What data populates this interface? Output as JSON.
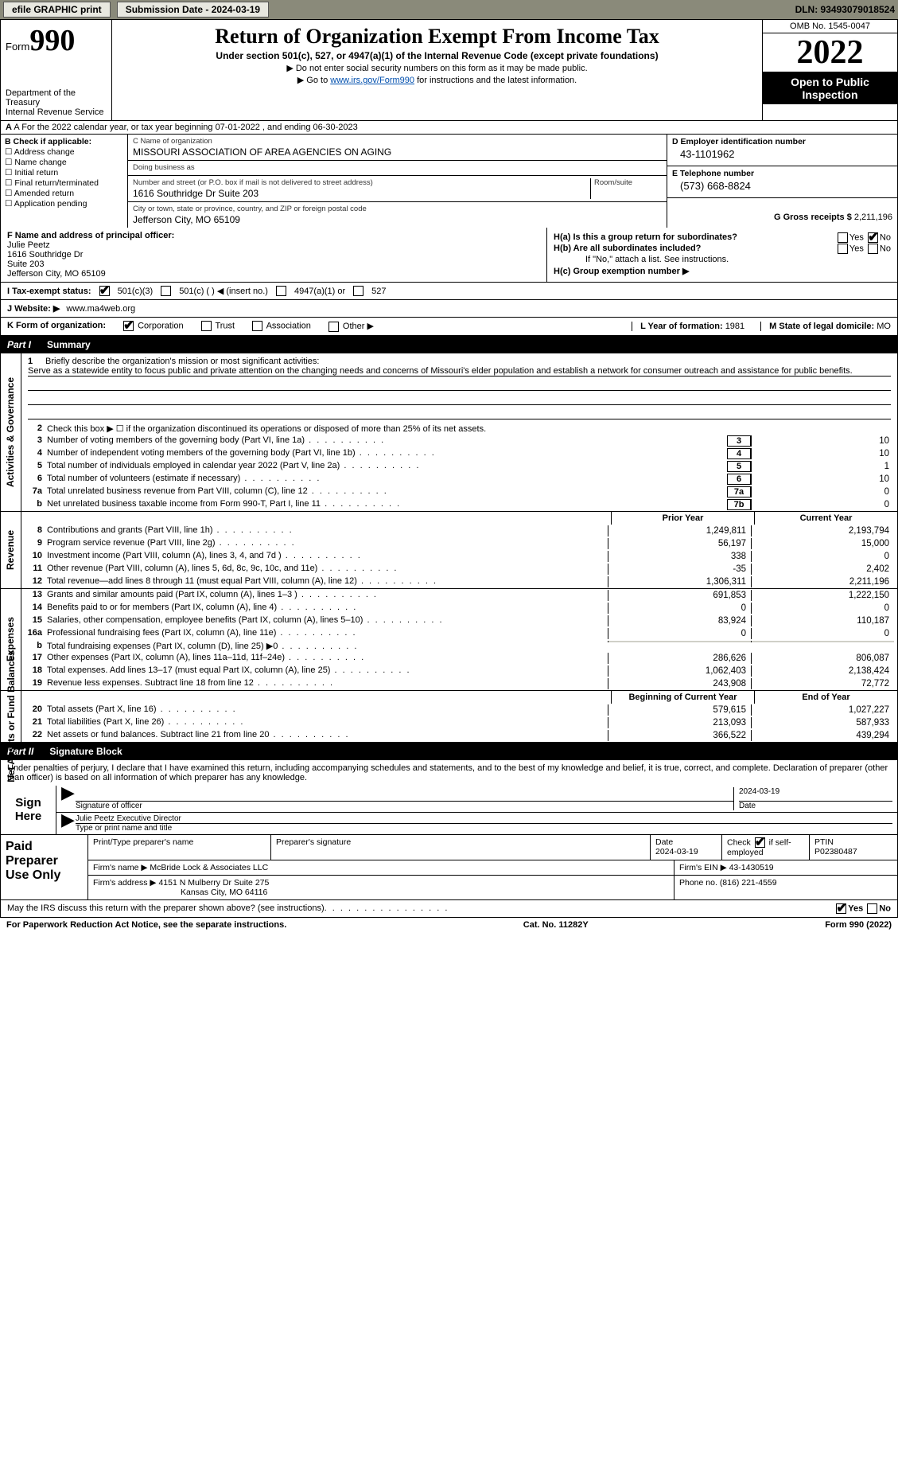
{
  "topbar": {
    "efile": "efile GRAPHIC print",
    "submission_label": "Submission Date - 2024-03-19",
    "dln": "DLN: 93493079018524"
  },
  "header": {
    "form_word": "Form",
    "form_num": "990",
    "dept1": "Department of the Treasury",
    "dept2": "Internal Revenue Service",
    "title": "Return of Organization Exempt From Income Tax",
    "subtitle": "Under section 501(c), 527, or 4947(a)(1) of the Internal Revenue Code (except private foundations)",
    "note1": "▶ Do not enter social security numbers on this form as it may be made public.",
    "note2_pre": "▶ Go to ",
    "note2_link": "www.irs.gov/Form990",
    "note2_post": " for instructions and the latest information.",
    "omb": "OMB No. 1545-0047",
    "year": "2022",
    "otp1": "Open to Public",
    "otp2": "Inspection"
  },
  "rowA": "A For the 2022 calendar year, or tax year beginning 07-01-2022    , and ending 06-30-2023",
  "B": {
    "title": "B Check if applicable:",
    "opts": [
      "☐ Address change",
      "☐ Name change",
      "☐ Initial return",
      "☐ Final return/terminated",
      "☐ Amended return",
      "☐ Application pending"
    ]
  },
  "C": {
    "name_lbl": "C Name of organization",
    "name": "MISSOURI ASSOCIATION OF AREA AGENCIES ON AGING",
    "dba_lbl": "Doing business as",
    "dba": "",
    "street_lbl": "Number and street (or P.O. box if mail is not delivered to street address)",
    "room_lbl": "Room/suite",
    "street": "1616 Southridge Dr Suite 203",
    "city_lbl": "City or town, state or province, country, and ZIP or foreign postal code",
    "city": "Jefferson City, MO  65109"
  },
  "D": {
    "ein_lbl": "D Employer identification number",
    "ein": "43-1101962",
    "tel_lbl": "E Telephone number",
    "tel": "(573) 668-8824",
    "gross_lbl": "G Gross receipts $",
    "gross": "2,211,196"
  },
  "F": {
    "lbl": "F  Name and address of principal officer:",
    "name": "Julie Peetz",
    "addr1": "1616 Southridge Dr",
    "addr2": "Suite 203",
    "addr3": "Jefferson City, MO  65109"
  },
  "H": {
    "a": "H(a)  Is this a group return for subordinates?",
    "b": "H(b)  Are all subordinates included?",
    "b2": "If \"No,\" attach a list. See instructions.",
    "c": "H(c)  Group exemption number ▶"
  },
  "I": {
    "lbl": "I    Tax-exempt status:",
    "o1": "501(c)(3)",
    "o2": "501(c) (  ) ◀ (insert no.)",
    "o3": "4947(a)(1) or",
    "o4": "527"
  },
  "J": {
    "lbl": "J   Website: ▶",
    "val": " www.ma4web.org"
  },
  "K": {
    "lbl": "K Form of organization:",
    "o1": "Corporation",
    "o2": "Trust",
    "o3": "Association",
    "o4": "Other ▶",
    "L_lbl": "L Year of formation:",
    "L_val": "1981",
    "M_lbl": "M State of legal domicile:",
    "M_val": "MO"
  },
  "part1": {
    "num": "Part I",
    "title": "Summary"
  },
  "mission": {
    "line1_num": "1",
    "line1": "Briefly describe the organization's mission or most significant activities:",
    "text": "Serve as a statewide entity to focus public and private attention on the changing needs and concerns of Missouri's elder population and establish a network for consumer outreach and assistance for public benefits."
  },
  "gov_lines": [
    {
      "n": "2",
      "t": "Check this box ▶ ☐  if the organization discontinued its operations or disposed of more than 25% of its net assets.",
      "box": "",
      "v": ""
    },
    {
      "n": "3",
      "t": "Number of voting members of the governing body (Part VI, line 1a)",
      "box": "3",
      "v": "10"
    },
    {
      "n": "4",
      "t": "Number of independent voting members of the governing body (Part VI, line 1b)",
      "box": "4",
      "v": "10"
    },
    {
      "n": "5",
      "t": "Total number of individuals employed in calendar year 2022 (Part V, line 2a)",
      "box": "5",
      "v": "1"
    },
    {
      "n": "6",
      "t": "Total number of volunteers (estimate if necessary)",
      "box": "6",
      "v": "10"
    },
    {
      "n": "7a",
      "t": "Total unrelated business revenue from Part VIII, column (C), line 12",
      "box": "7a",
      "v": "0"
    },
    {
      "n": "b",
      "t": "Net unrelated business taxable income from Form 990-T, Part I, line 11",
      "box": "7b",
      "v": "0"
    }
  ],
  "col_hdrs": {
    "prior": "Prior Year",
    "current": "Current Year",
    "boy": "Beginning of Current Year",
    "eoy": "End of Year"
  },
  "revenue": [
    {
      "n": "8",
      "t": "Contributions and grants (Part VIII, line 1h)",
      "p": "1,249,811",
      "c": "2,193,794"
    },
    {
      "n": "9",
      "t": "Program service revenue (Part VIII, line 2g)",
      "p": "56,197",
      "c": "15,000"
    },
    {
      "n": "10",
      "t": "Investment income (Part VIII, column (A), lines 3, 4, and 7d )",
      "p": "338",
      "c": "0"
    },
    {
      "n": "11",
      "t": "Other revenue (Part VIII, column (A), lines 5, 6d, 8c, 9c, 10c, and 11e)",
      "p": "-35",
      "c": "2,402"
    },
    {
      "n": "12",
      "t": "Total revenue—add lines 8 through 11 (must equal Part VIII, column (A), line 12)",
      "p": "1,306,311",
      "c": "2,211,196"
    }
  ],
  "expenses": [
    {
      "n": "13",
      "t": "Grants and similar amounts paid (Part IX, column (A), lines 1–3 )",
      "p": "691,853",
      "c": "1,222,150"
    },
    {
      "n": "14",
      "t": "Benefits paid to or for members (Part IX, column (A), line 4)",
      "p": "0",
      "c": "0"
    },
    {
      "n": "15",
      "t": "Salaries, other compensation, employee benefits (Part IX, column (A), lines 5–10)",
      "p": "83,924",
      "c": "110,187"
    },
    {
      "n": "16a",
      "t": "Professional fundraising fees (Part IX, column (A), line 11e)",
      "p": "0",
      "c": "0"
    },
    {
      "n": "b",
      "t": "Total fundraising expenses (Part IX, column (D), line 25) ▶0",
      "p": "",
      "c": "",
      "shaded": true
    },
    {
      "n": "17",
      "t": "Other expenses (Part IX, column (A), lines 11a–11d, 11f–24e)",
      "p": "286,626",
      "c": "806,087"
    },
    {
      "n": "18",
      "t": "Total expenses. Add lines 13–17 (must equal Part IX, column (A), line 25)",
      "p": "1,062,403",
      "c": "2,138,424"
    },
    {
      "n": "19",
      "t": "Revenue less expenses. Subtract line 18 from line 12",
      "p": "243,908",
      "c": "72,772"
    }
  ],
  "netassets": [
    {
      "n": "20",
      "t": "Total assets (Part X, line 16)",
      "p": "579,615",
      "c": "1,027,227"
    },
    {
      "n": "21",
      "t": "Total liabilities (Part X, line 26)",
      "p": "213,093",
      "c": "587,933"
    },
    {
      "n": "22",
      "t": "Net assets or fund balances. Subtract line 21 from line 20",
      "p": "366,522",
      "c": "439,294"
    }
  ],
  "vtabs": {
    "gov": "Activities & Governance",
    "rev": "Revenue",
    "exp": "Expenses",
    "net": "Net Assets or Fund Balances"
  },
  "part2": {
    "num": "Part II",
    "title": "Signature Block"
  },
  "sig_intro": "Under penalties of perjury, I declare that I have examined this return, including accompanying schedules and statements, and to the best of my knowledge and belief, it is true, correct, and complete. Declaration of preparer (other than officer) is based on all information of which preparer has any knowledge.",
  "sign": {
    "here": "Sign Here",
    "sig_lbl": "Signature of officer",
    "date": "2024-03-19",
    "date_lbl": "Date",
    "name": "Julie Peetz  Executive Director",
    "name_lbl": "Type or print name and title"
  },
  "prep": {
    "lbl": "Paid Preparer Use Only",
    "h1": "Print/Type preparer's name",
    "h2": "Preparer's signature",
    "h3_lbl": "Date",
    "h3": "2024-03-19",
    "h4_lbl": "Check",
    "h4_txt": "if self-employed",
    "h5_lbl": "PTIN",
    "h5": "P02380487",
    "firm_lbl": "Firm's name    ▶",
    "firm": "McBride Lock & Associates LLC",
    "ein_lbl": "Firm's EIN ▶",
    "ein": "43-1430519",
    "addr_lbl": "Firm's address ▶",
    "addr1": "4151 N Mulberry Dr Suite 275",
    "addr2": "Kansas City, MO  64116",
    "phone_lbl": "Phone no.",
    "phone": "(816) 221-4559"
  },
  "footer": {
    "q": "May the IRS discuss this return with the preparer shown above? (see instructions)",
    "yes": "Yes",
    "no": "No",
    "pra": "For Paperwork Reduction Act Notice, see the separate instructions.",
    "cat": "Cat. No. 11282Y",
    "form": "Form 990 (2022)"
  }
}
